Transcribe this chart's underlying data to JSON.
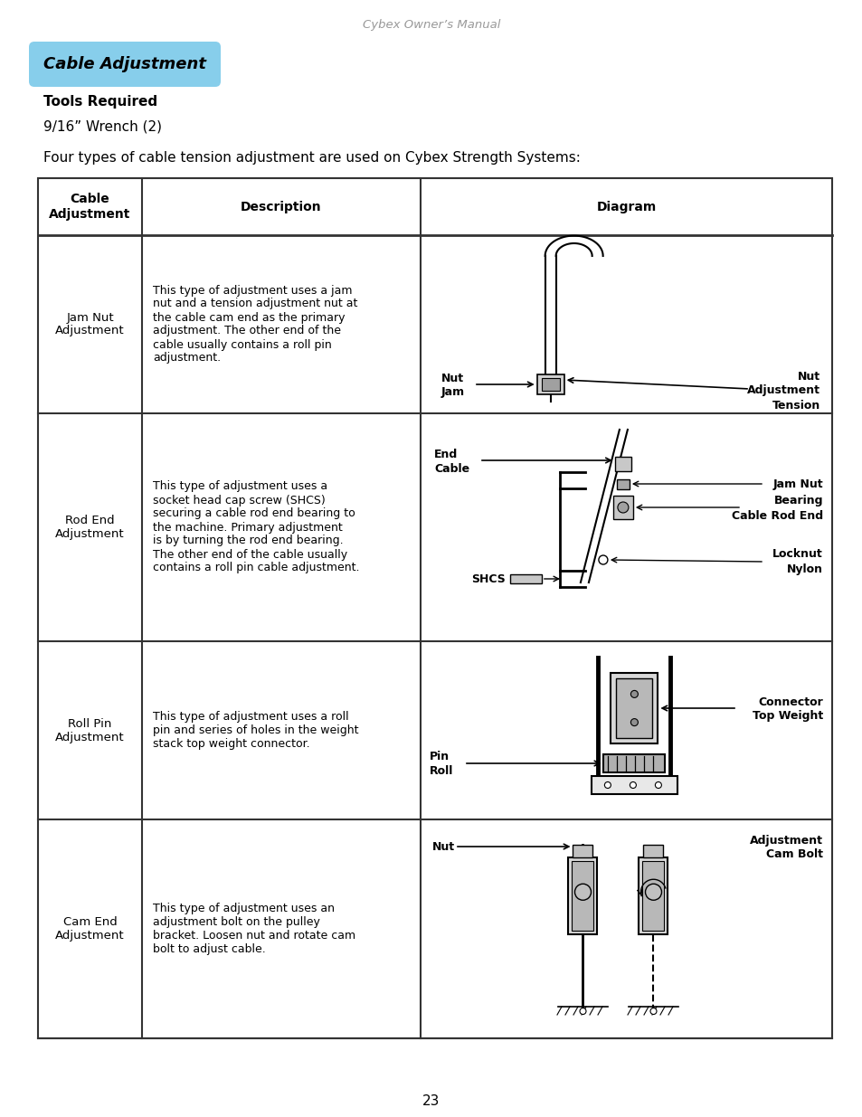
{
  "page_header": "Cybex Owner’s Manual",
  "section_title": "Cable Adjustment",
  "tools_required_label": "Tools Required",
  "tools_required_value": "9/16” Wrench (2)",
  "intro_text": "Four types of cable tension adjustment are used on Cybex Strength Systems:",
  "rows": [
    {
      "col1": "Jam Nut\nAdjustment",
      "col2": "This type of adjustment uses a jam\nnut and a tension adjustment nut at\nthe cable cam end as the primary\nadjustment. The other end of the\ncable usually contains a roll pin\nadjustment.",
      "diagram": "jam_nut"
    },
    {
      "col1": "Rod End\nAdjustment",
      "col2": "This type of adjustment uses a\nsocket head cap screw (SHCS)\nsecuring a cable rod end bearing to\nthe machine. Primary adjustment\nis by turning the rod end bearing.\nThe other end of the cable usually\ncontains a roll pin cable adjustment.",
      "diagram": "rod_end"
    },
    {
      "col1": "Roll Pin\nAdjustment",
      "col2": "This type of adjustment uses a roll\npin and series of holes in the weight\nstack top weight connector.",
      "diagram": "roll_pin"
    },
    {
      "col1": "Cam End\nAdjustment",
      "col2": "This type of adjustment uses an\nadjustment bolt on the pulley\nbracket. Loosen nut and rotate cam\nbolt to adjust cable.",
      "diagram": "cam_end"
    }
  ],
  "page_number": "23",
  "bg_color": "#ffffff",
  "text_color": "#000000",
  "title_bg": "#87ceeb",
  "table_border_color": "#333333"
}
